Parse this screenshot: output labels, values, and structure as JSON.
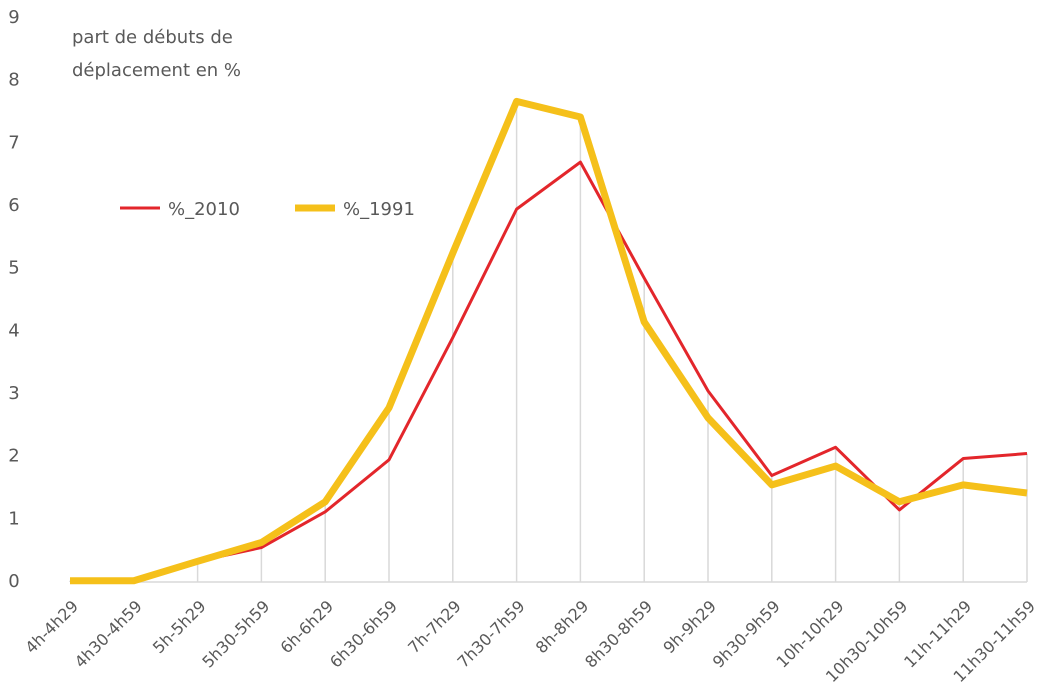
{
  "chart_data": {
    "type": "line",
    "ylabel": [
      "part de débuts de",
      "déplacement en %"
    ],
    "categories": [
      "4h-4h29",
      "4h30-4h59",
      "5h-5h29",
      "5h30-5h59",
      "6h-6h29",
      "6h30-6h59",
      "7h-7h29",
      "7h30-7h59",
      "8h-8h29",
      "8h30-8h59",
      "9h-9h29",
      "9h30-9h59",
      "10h-10h29",
      "10h30-10h59",
      "11h-11h29",
      "11h30-11h59"
    ],
    "series": [
      {
        "name": "%_2010",
        "color": "#e3262b",
        "width": 3,
        "values": [
          0.02,
          0.02,
          0.33,
          0.55,
          1.12,
          1.95,
          3.9,
          5.95,
          6.7,
          4.85,
          3.05,
          1.7,
          2.15,
          1.15,
          1.97,
          2.05
        ]
      },
      {
        "name": "%_1991",
        "color": "#f5c01a",
        "width": 7,
        "values": [
          0.02,
          0.02,
          0.33,
          0.63,
          1.28,
          2.78,
          5.25,
          7.67,
          7.42,
          4.15,
          2.62,
          1.55,
          1.85,
          1.28,
          1.55,
          1.42
        ]
      }
    ],
    "ylim": [
      0,
      9
    ],
    "yticks": [
      0,
      1,
      2,
      3,
      4,
      5,
      6,
      7,
      8,
      9
    ]
  }
}
